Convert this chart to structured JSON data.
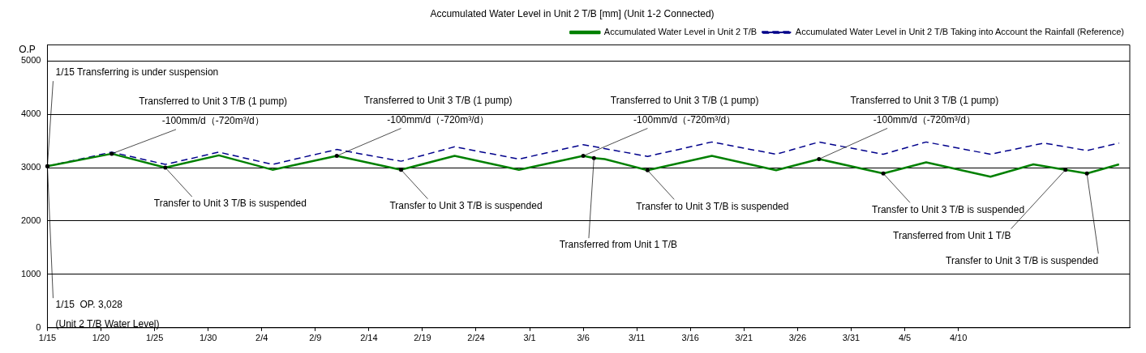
{
  "chart_data": {
    "type": "line",
    "title": "Accumulated Water Level in Unit 2 T/B [mm] (Unit 1-2 Connected)",
    "ylabel": "O.P",
    "xlim": [
      "--01-15",
      "--04-26"
    ],
    "ylim": [
      0,
      5300
    ],
    "xticks": [
      {
        "value": "--01-15",
        "label": "1/15"
      },
      {
        "value": "--01-20",
        "label": "1/20"
      },
      {
        "value": "--01-25",
        "label": "1/25"
      },
      {
        "value": "--01-30",
        "label": "1/30"
      },
      {
        "value": "--02-04",
        "label": "2/4"
      },
      {
        "value": "--02-09",
        "label": "2/9"
      },
      {
        "value": "--02-14",
        "label": "2/14"
      },
      {
        "value": "--02-19",
        "label": "2/19"
      },
      {
        "value": "--02-24",
        "label": "2/24"
      },
      {
        "value": "--03-01",
        "label": "3/1"
      },
      {
        "value": "--03-06",
        "label": "3/6"
      },
      {
        "value": "--03-11",
        "label": "3/11"
      },
      {
        "value": "--03-16",
        "label": "3/16"
      },
      {
        "value": "--03-21",
        "label": "3/21"
      },
      {
        "value": "--03-26",
        "label": "3/26"
      },
      {
        "value": "--03-31",
        "label": "3/31"
      },
      {
        "value": "--04-05",
        "label": "4/5"
      },
      {
        "value": "--04-10",
        "label": "4/10"
      }
    ],
    "yticks": [
      0,
      1000,
      2000,
      3000,
      4000,
      5000
    ],
    "grid": "y",
    "legend": "top right",
    "marker": "none",
    "series": [
      {
        "name": "Accumulated Water Level in Unit 2 T/B",
        "color": "#008000",
        "line_style": "solid",
        "x": [
          "--01-15",
          "--01-21",
          "--01-26",
          "--01-31",
          "--02-05",
          "--02-11",
          "--02-17",
          "--02-22",
          "--02-28",
          "--03-06",
          "--03-07",
          "--03-08",
          "--03-12",
          "--03-18",
          "--03-24",
          "--03-28",
          "--04-03",
          "--04-07",
          "--04-13",
          "--04-17",
          "--04-20",
          "--04-22",
          "--04-25"
        ],
        "values": [
          3028,
          3260,
          3000,
          3230,
          2960,
          3220,
          2960,
          3220,
          2960,
          3220,
          3180,
          3160,
          2950,
          3220,
          2950,
          3160,
          2890,
          3100,
          2830,
          3060,
          2960,
          2890,
          3060
        ]
      },
      {
        "name": "Accumulated Water Level in Unit 2 T/B Taking into Account the Rainfall (Reference)",
        "color": "#00008b",
        "line_style": "dashed",
        "x": [
          "--01-15",
          "--01-21",
          "--01-26",
          "--01-31",
          "--02-05",
          "--02-11",
          "--02-17",
          "--02-22",
          "--02-28",
          "--03-06",
          "--03-12",
          "--03-18",
          "--03-24",
          "--03-28",
          "--04-03",
          "--04-07",
          "--04-13",
          "--04-18",
          "--04-22",
          "--04-25"
        ],
        "values": [
          3028,
          3290,
          3060,
          3290,
          3060,
          3340,
          3120,
          3390,
          3160,
          3430,
          3210,
          3480,
          3250,
          3480,
          3250,
          3480,
          3250,
          3460,
          3320,
          3460
        ]
      }
    ],
    "annotations": [
      {
        "text": "1/15 Transferring is under suspension",
        "x": "--01-15",
        "y": 3028
      },
      {
        "text": "1/15  OP. 3,028\n(Unit 2 T/B Water Level)",
        "x": "--01-15",
        "y": 3028
      },
      {
        "text": "Transferred to Unit 3 T/B (1 pump)\n-100mm/d（-720m³/d）",
        "x": "--01-21",
        "y": 3260
      },
      {
        "text": "Transferred to Unit 3 T/B (1 pump)\n-100mm/d（-720m³/d）",
        "x": "--02-11",
        "y": 3220
      },
      {
        "text": "Transferred to Unit 3 T/B (1 pump)\n-100mm/d（-720m³/d）",
        "x": "--03-06",
        "y": 3220
      },
      {
        "text": "Transferred to Unit 3 T/B (1 pump)\n-100mm/d（-720m³/d）",
        "x": "--03-28",
        "y": 3160
      },
      {
        "text": "Transfer to Unit 3 T/B is suspended",
        "x": "--01-26",
        "y": 3000
      },
      {
        "text": "Transfer to Unit 3 T/B is suspended",
        "x": "--02-17",
        "y": 2960
      },
      {
        "text": "Transfer to Unit 3 T/B is suspended",
        "x": "--03-12",
        "y": 2950
      },
      {
        "text": "Transfer to Unit 3 T/B is suspended",
        "x": "--04-03",
        "y": 2890
      },
      {
        "text": "Transferred from Unit 1 T/B",
        "x": "--03-07",
        "y": 3180
      },
      {
        "text": "Transferred from Unit 1 T/B",
        "x": "--04-20",
        "y": 2960
      },
      {
        "text": "Transfer to Unit 3 T/B is suspended",
        "x": "--04-22",
        "y": 2890
      }
    ]
  }
}
